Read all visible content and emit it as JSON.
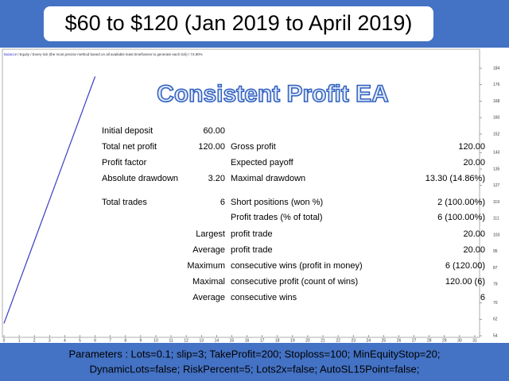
{
  "header": {
    "title": "$60 to $120 (Jan 2019 to April 2019)"
  },
  "chart_data": {
    "type": "line",
    "title": "Consistent Profit EA",
    "subtitle": "/ Equity / Every tick (the most precise method based on all available least timeframes to generate each tick) / 74.80%",
    "x": [
      0,
      1,
      2,
      3,
      4,
      5,
      6
    ],
    "series": [
      {
        "name": "Balance",
        "color": "#3b3bc4",
        "values": [
          60,
          80,
          100,
          120,
          140,
          160,
          180
        ]
      }
    ],
    "xlim": [
      0,
      31
    ],
    "xticks": [
      0,
      1,
      2,
      3,
      4,
      5,
      6,
      7,
      8,
      9,
      10,
      11,
      12,
      13,
      14,
      15,
      16,
      17,
      18,
      19,
      20,
      21,
      22,
      23,
      24,
      25,
      26,
      27,
      28,
      29,
      30,
      31
    ],
    "ylim": [
      54,
      184
    ],
    "yticks": [
      184,
      176,
      168,
      160,
      152,
      143,
      135,
      127,
      119,
      111,
      103,
      95,
      87,
      79,
      70,
      62,
      54
    ]
  },
  "stats": {
    "rows": [
      {
        "label": "Initial deposit",
        "value": "60.00"
      },
      {
        "label": "Total net profit",
        "value": "120.00",
        "label2": "Gross profit",
        "value2": "120.00"
      },
      {
        "label": "Profit factor",
        "label2": "Expected payoff",
        "value2": "20.00"
      },
      {
        "label": "Absolute drawdown",
        "value": "3.20",
        "label2": "Maximal drawdown",
        "value2": "13.30 (14.86%)"
      },
      {
        "label": "Total trades",
        "value": "6",
        "label2": "Short positions (won %)",
        "value2": "2 (100.00%)"
      },
      {
        "label2": "Profit trades (% of total)",
        "value2": "6 (100.00%)"
      },
      {
        "prefix": "Largest",
        "label2": "profit trade",
        "value2": "20.00"
      },
      {
        "prefix": "Average",
        "label2": "profit trade",
        "value2": "20.00"
      },
      {
        "prefix": "Maximum",
        "label2": "consecutive wins (profit in money)",
        "value2": "6 (120.00)"
      },
      {
        "prefix": "Maximal",
        "label2": "consecutive profit (count of wins)",
        "value2": "120.00 (6)"
      },
      {
        "prefix": "Average",
        "label2": "consecutive wins",
        "value2": "6"
      }
    ]
  },
  "footer": {
    "lines": [
      "Parameters :  Lots=0.1; slip=3; TakeProfit=200; Stoploss=100; MinEquityStop=20;",
      "DynamicLots=false; RiskPercent=5; Lots2x=false; AutoSL15Point=false;"
    ]
  }
}
